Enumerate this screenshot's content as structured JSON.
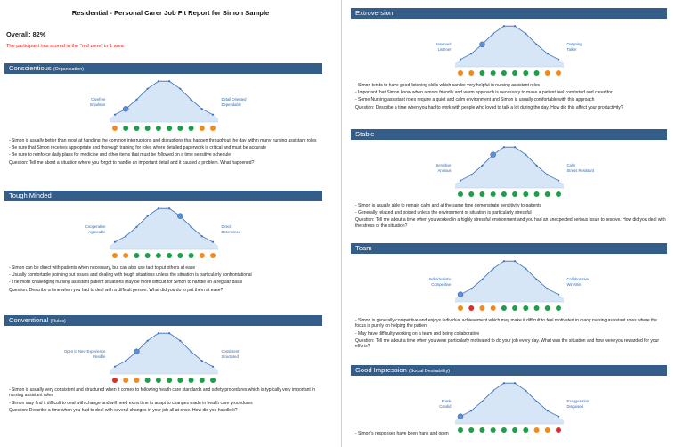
{
  "title": "Residential - Personal Carer Job Fit Report for Simon Sample",
  "overall": "Overall: 82%",
  "red_zone_note": "The participant has scored in the \"red zone\" in 1 area",
  "colors": {
    "header": "#355d89",
    "green": "#1f9e4a",
    "orange": "#f08c1e",
    "red": "#d9302a",
    "curve_fill": "#d6e6f6",
    "curve_line": "#3b6fb5"
  },
  "sections": [
    {
      "id": "conscientious",
      "title": "Conscientious",
      "subtitle": "(Organisation)",
      "left_label": [
        "Carefree",
        "Impulsive"
      ],
      "right_label": [
        "Detail Oriented",
        "Dependable"
      ],
      "marker": 1,
      "dots": [
        "orange",
        "green",
        "green",
        "green",
        "green",
        "green",
        "green",
        "green",
        "orange",
        "orange"
      ],
      "lines": [
        "- Simon is usually better than most at handling the common interruptions and disruptions that happen throughout the day within many nursing assistant roles",
        "- Be sure that Simon receives appropriate and thorough training for roles where detailed paperwork is critical and must be accurate",
        "- Be sure to reinforce daily plans for medicine and other items that must be followed on a time sensitive schedule",
        "Question: Tell me about a situation where you forgot to handle an important detail and it caused a problem. What happened?"
      ]
    },
    {
      "id": "tough-minded",
      "title": "Tough Minded",
      "subtitle": "",
      "left_label": [
        "Cooperative",
        "Agreeable"
      ],
      "right_label": [
        "Direct",
        "Determined"
      ],
      "marker": 6,
      "dots": [
        "orange",
        "orange",
        "green",
        "green",
        "green",
        "green",
        "green",
        "green",
        "orange",
        "orange"
      ],
      "lines": [
        "- Simon can be direct with patients when necessary, but can also use tact to put others at ease",
        "- Usually comfortable pointing out issues and dealing with tough situations unless the situation is particularly confrontational",
        "- The more challenging nursing assistant patient situations may be more difficult for Simon to handle on a regular basis",
        "Question: Describe a time when you had to deal with a difficult person. What did you do to put them at ease?"
      ]
    },
    {
      "id": "conventional",
      "title": "Conventional",
      "subtitle": "(Rules)",
      "left_label": [
        "Open to New Experience",
        "Flexible"
      ],
      "right_label": [
        "Consistent",
        "Structured"
      ],
      "marker": 2,
      "dots": [
        "red",
        "orange",
        "orange",
        "green",
        "green",
        "green",
        "green",
        "green",
        "green",
        "green"
      ],
      "lines": [
        "- Simon is usually very consistent and structured when it comes to following health care standards and safety procedures which is typically very important in nursing assistant roles",
        "- Simon may find it difficult to deal with change and will need extra time to adapt to changes made in health care procedures",
        "Question: Describe a time when you had to deal with several changes in your job all at once. How did you handle it?"
      ]
    },
    {
      "id": "extroversion",
      "title": "Extroversion",
      "subtitle": "",
      "left_label": [
        "Reserved",
        "Listener"
      ],
      "right_label": [
        "Outgoing",
        "Talker"
      ],
      "marker": 2,
      "dots": [
        "orange",
        "orange",
        "green",
        "green",
        "green",
        "green",
        "green",
        "green",
        "orange",
        "orange"
      ],
      "lines": [
        "- Simon tends to have good listening skills which can be very helpful in nursing assistant roles",
        "- Important that Simon know when a more friendly and warm approach is necessary to make a patient feel comforted and cared for",
        "- Some Nursing assistant roles require a quiet and calm environment and Simon is usually comfortable with this approach",
        "Question: Describe a time when you had to work with people who loved to talk a lot during the day. How did this affect your productivity?"
      ]
    },
    {
      "id": "stable",
      "title": "Stable",
      "subtitle": "",
      "left_label": [
        "Sensitive",
        "Anxious"
      ],
      "right_label": [
        "Calm",
        "Stress Resistant"
      ],
      "marker": 3,
      "dots": [
        "green",
        "green",
        "green",
        "green",
        "green",
        "green",
        "green",
        "green",
        "green",
        "green"
      ],
      "lines": [
        "- Simon is usually able to remain calm and at the same time demonstrate sensitivity to patients",
        "- Generally relaxed and poised unless the environment or situation is particularly stressful",
        "Question: Tell me about a time when you worked in a highly stressful environment and you had an unexpected serious issue to resolve. How did you deal with the stress of the situation?"
      ]
    },
    {
      "id": "team",
      "title": "Team",
      "subtitle": "",
      "left_label": [
        "Individualistic",
        "Competitive"
      ],
      "right_label": [
        "Collaborative",
        "Win-Win"
      ],
      "marker": 0,
      "dots": [
        "orange",
        "red",
        "orange",
        "orange",
        "green",
        "green",
        "green",
        "green",
        "green",
        "green"
      ],
      "lines": [
        "- Simon is generally competitive and enjoys individual achievement which may make it difficult to feel motivated in many nursing assistant roles where the focus is purely on helping the patient",
        "- May have difficulty working on a team and being collaborative",
        "Question: Tell me about a time when you were particularly motivated to do your job every day. What was the situation and how were you rewarded for your efforts?"
      ]
    },
    {
      "id": "good-impression",
      "title": "Good Impression",
      "subtitle": "(Social Desirability)",
      "left_label": [
        "Frank",
        "Candid"
      ],
      "right_label": [
        "Exaggeration",
        "Disguised"
      ],
      "marker": 0,
      "dots": [
        "green",
        "green",
        "green",
        "green",
        "green",
        "green",
        "green",
        "orange",
        "orange",
        "red"
      ],
      "lines": [
        "- Simon's responses have been frank and open"
      ]
    }
  ]
}
